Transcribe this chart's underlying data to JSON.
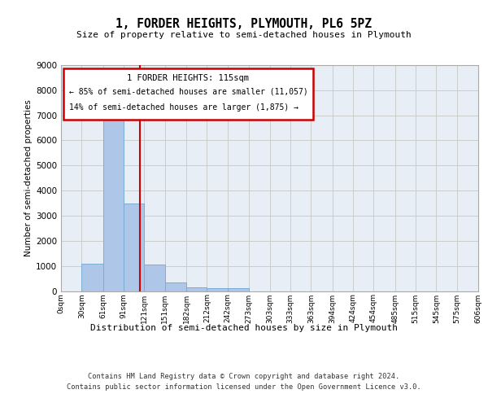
{
  "title": "1, FORDER HEIGHTS, PLYMOUTH, PL6 5PZ",
  "subtitle": "Size of property relative to semi-detached houses in Plymouth",
  "xlabel": "Distribution of semi-detached houses by size in Plymouth",
  "ylabel": "Number of semi-detached properties",
  "bar_edges": [
    0,
    30,
    61,
    91,
    121,
    151,
    182,
    212,
    242,
    273,
    303,
    333,
    363,
    394,
    424,
    454,
    485,
    515,
    545,
    575,
    606
  ],
  "bar_heights": [
    0,
    1100,
    6900,
    3500,
    1050,
    350,
    150,
    100,
    100,
    0,
    0,
    0,
    0,
    0,
    0,
    0,
    0,
    0,
    0,
    0
  ],
  "bar_color": "#aec6e8",
  "bar_edge_color": "#7aadd4",
  "property_size": 115,
  "vline_color": "#cc0000",
  "annotation_title": "1 FORDER HEIGHTS: 115sqm",
  "annotation_line1": "← 85% of semi-detached houses are smaller (11,057)",
  "annotation_line2": "14% of semi-detached houses are larger (1,875) →",
  "annotation_box_color": "#ffffff",
  "annotation_box_edge": "#cc0000",
  "ylim": [
    0,
    9000
  ],
  "yticks": [
    0,
    1000,
    2000,
    3000,
    4000,
    5000,
    6000,
    7000,
    8000,
    9000
  ],
  "grid_color": "#cccccc",
  "background_color": "#e8eef5",
  "footer_line1": "Contains HM Land Registry data © Crown copyright and database right 2024.",
  "footer_line2": "Contains public sector information licensed under the Open Government Licence v3.0."
}
